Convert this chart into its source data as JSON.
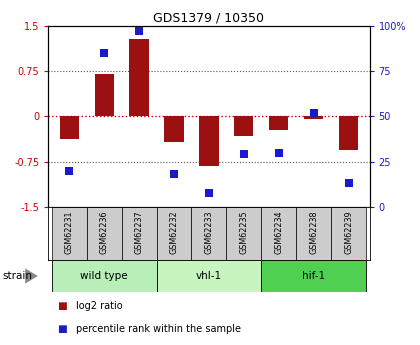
{
  "title": "GDS1379 / 10350",
  "samples": [
    "GSM62231",
    "GSM62236",
    "GSM62237",
    "GSM62232",
    "GSM62233",
    "GSM62235",
    "GSM62234",
    "GSM62238",
    "GSM62239"
  ],
  "log2_ratio": [
    -0.38,
    0.7,
    1.28,
    -0.42,
    -0.82,
    -0.32,
    -0.22,
    -0.05,
    -0.55
  ],
  "percentile": [
    20,
    85,
    97,
    18,
    8,
    29,
    30,
    52,
    13
  ],
  "groups": [
    {
      "label": "wild type",
      "start": 0,
      "end": 3,
      "color": "#b8eeb8"
    },
    {
      "label": "vhl-1",
      "start": 3,
      "end": 6,
      "color": "#c8f4c0"
    },
    {
      "label": "hif-1",
      "start": 6,
      "end": 9,
      "color": "#50d050"
    }
  ],
  "ylim_left": [
    -1.5,
    1.5
  ],
  "ylim_right": [
    0,
    100
  ],
  "yticks_left": [
    -1.5,
    -0.75,
    0,
    0.75,
    1.5
  ],
  "ytick_labels_left": [
    "-1.5",
    "-0.75",
    "0",
    "0.75",
    "1.5"
  ],
  "yticks_right": [
    0,
    25,
    50,
    75,
    100
  ],
  "ytick_labels_right": [
    "0",
    "25",
    "50",
    "75",
    "100%"
  ],
  "bar_color": "#9B1010",
  "dot_color": "#1a1acd",
  "bar_width": 0.55,
  "dot_size": 28,
  "hline_color": "#cc0000",
  "grid_color": "#555555",
  "strain_label": "strain",
  "legend_bar_label": "log2 ratio",
  "legend_dot_label": "percentile rank within the sample",
  "sample_box_color": "#cccccc",
  "fig_bg": "#ffffff"
}
